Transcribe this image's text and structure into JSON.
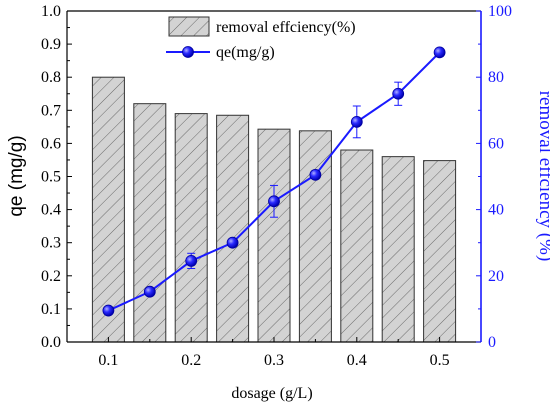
{
  "chart_data": {
    "type": "bar+line",
    "x_categories": [
      0.1,
      0.15,
      0.2,
      0.25,
      0.3,
      0.35,
      0.4,
      0.45,
      0.5
    ],
    "x_tick_labels": [
      "0.1",
      "0.2",
      "0.3",
      "0.4",
      "0.5"
    ],
    "xlabel": "dosage (g/L)",
    "ylabel_left": "qe (mg/g)",
    "ylabel_right": "removal effciency (%)",
    "ylim_left": [
      0.0,
      1.0
    ],
    "ylim_right": [
      0,
      100
    ],
    "y_ticks_left": [
      "0.0",
      "0.1",
      "0.2",
      "0.3",
      "0.4",
      "0.5",
      "0.6",
      "0.7",
      "0.8",
      "0.9",
      "1.0"
    ],
    "y_ticks_right": [
      "0",
      "20",
      "40",
      "60",
      "80",
      "100"
    ],
    "grid": false,
    "legend_position": "top-center",
    "series": [
      {
        "name": "removal effciency(%)",
        "kind": "bar",
        "axis": "left",
        "style": "hatched-gray",
        "values": [
          0.8,
          0.72,
          0.69,
          0.685,
          0.643,
          0.638,
          0.58,
          0.56,
          0.548
        ]
      },
      {
        "name": "qe(mg/g)",
        "kind": "line",
        "axis": "right",
        "color": "#1a1aff",
        "values": [
          9.5,
          15.2,
          24.5,
          30.0,
          42.5,
          50.5,
          66.5,
          75.0,
          87.5
        ],
        "errors": [
          0.8,
          1.0,
          2.3,
          1.2,
          4.8,
          1.2,
          4.8,
          3.5,
          1.2
        ]
      }
    ]
  }
}
